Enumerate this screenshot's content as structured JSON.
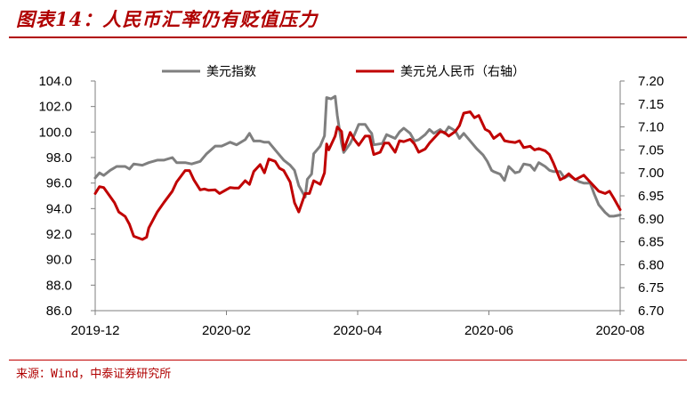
{
  "header": {
    "figure_title": "图表14：人民币汇率仍有贬值压力"
  },
  "footer": {
    "source_note": "来源：Wind，中泰证券研究所"
  },
  "chart_data": {
    "type": "line",
    "title": "",
    "grid": false,
    "legend_position": "top",
    "x_tick_labels": [
      "2019-12",
      "2020-02",
      "2020-04",
      "2020-06",
      "2020-08"
    ],
    "x_range": [
      "2019-12-02",
      "2020-08-03"
    ],
    "y_left": {
      "label": "",
      "ylim": [
        86.0,
        104.0
      ],
      "ticks": [
        "86.0",
        "88.0",
        "90.0",
        "92.0",
        "94.0",
        "96.0",
        "98.0",
        "100.0",
        "102.0",
        "104.0"
      ]
    },
    "y_right": {
      "label": "",
      "ylim": [
        6.7,
        7.2
      ],
      "ticks": [
        "6.70",
        "6.75",
        "6.80",
        "6.85",
        "6.90",
        "6.95",
        "7.00",
        "7.05",
        "7.10",
        "7.15",
        "7.20"
      ]
    },
    "series": [
      {
        "name": "美元指数",
        "axis": "left",
        "color": "#7f7f7f",
        "points": [
          [
            "2019-12-02",
            96.4
          ],
          [
            "2019-12-04",
            96.8
          ],
          [
            "2019-12-06",
            96.6
          ],
          [
            "2019-12-09",
            97.0
          ],
          [
            "2019-12-12",
            97.3
          ],
          [
            "2019-12-16",
            97.3
          ],
          [
            "2019-12-18",
            97.1
          ],
          [
            "2019-12-20",
            97.5
          ],
          [
            "2019-12-24",
            97.4
          ],
          [
            "2019-12-27",
            97.6
          ],
          [
            "2019-12-31",
            97.8
          ],
          [
            "2020-01-03",
            97.8
          ],
          [
            "2020-01-07",
            98.0
          ],
          [
            "2020-01-09",
            97.6
          ],
          [
            "2020-01-13",
            97.6
          ],
          [
            "2020-01-16",
            97.5
          ],
          [
            "2020-01-20",
            97.7
          ],
          [
            "2020-01-23",
            98.3
          ],
          [
            "2020-01-27",
            98.9
          ],
          [
            "2020-01-30",
            98.9
          ],
          [
            "2020-02-03",
            99.2
          ],
          [
            "2020-02-06",
            99.0
          ],
          [
            "2020-02-10",
            99.4
          ],
          [
            "2020-02-12",
            99.9
          ],
          [
            "2020-02-14",
            99.3
          ],
          [
            "2020-02-17",
            99.3
          ],
          [
            "2020-02-19",
            99.2
          ],
          [
            "2020-02-21",
            99.2
          ],
          [
            "2020-02-25",
            98.4
          ],
          [
            "2020-02-28",
            97.8
          ],
          [
            "2020-03-02",
            97.4
          ],
          [
            "2020-03-04",
            97.0
          ],
          [
            "2020-03-06",
            95.8
          ],
          [
            "2020-03-09",
            94.9
          ],
          [
            "2020-03-10",
            96.3
          ],
          [
            "2020-03-12",
            96.7
          ],
          [
            "2020-03-13",
            98.3
          ],
          [
            "2020-03-16",
            98.9
          ],
          [
            "2020-03-18",
            99.7
          ],
          [
            "2020-03-19",
            102.7
          ],
          [
            "2020-03-21",
            102.6
          ],
          [
            "2020-03-23",
            102.8
          ],
          [
            "2020-03-24",
            101.3
          ],
          [
            "2020-03-26",
            99.1
          ],
          [
            "2020-03-27",
            98.4
          ],
          [
            "2020-03-30",
            99.1
          ],
          [
            "2020-04-01",
            99.8
          ],
          [
            "2020-04-03",
            100.6
          ],
          [
            "2020-04-06",
            100.6
          ],
          [
            "2020-04-08",
            100.1
          ],
          [
            "2020-04-09",
            99.9
          ],
          [
            "2020-04-10",
            99.0
          ],
          [
            "2020-04-14",
            99.1
          ],
          [
            "2020-04-16",
            99.8
          ],
          [
            "2020-04-20",
            99.5
          ],
          [
            "2020-04-22",
            100.0
          ],
          [
            "2020-04-24",
            100.3
          ],
          [
            "2020-04-27",
            99.9
          ],
          [
            "2020-04-29",
            99.3
          ],
          [
            "2020-05-01",
            99.4
          ],
          [
            "2020-05-04",
            99.8
          ],
          [
            "2020-05-06",
            100.2
          ],
          [
            "2020-05-08",
            99.9
          ],
          [
            "2020-05-11",
            100.2
          ],
          [
            "2020-05-13",
            99.9
          ],
          [
            "2020-05-15",
            100.4
          ],
          [
            "2020-05-18",
            100.1
          ],
          [
            "2020-05-20",
            99.5
          ],
          [
            "2020-05-22",
            99.9
          ],
          [
            "2020-05-26",
            99.1
          ],
          [
            "2020-05-28",
            98.7
          ],
          [
            "2020-05-31",
            98.2
          ],
          [
            "2020-06-02",
            97.7
          ],
          [
            "2020-06-04",
            97.0
          ],
          [
            "2020-06-05",
            96.9
          ],
          [
            "2020-06-08",
            96.7
          ],
          [
            "2020-06-10",
            96.2
          ],
          [
            "2020-06-12",
            97.3
          ],
          [
            "2020-06-15",
            96.8
          ],
          [
            "2020-06-17",
            96.9
          ],
          [
            "2020-06-19",
            97.5
          ],
          [
            "2020-06-22",
            97.4
          ],
          [
            "2020-06-24",
            97.0
          ],
          [
            "2020-06-26",
            97.6
          ],
          [
            "2020-06-29",
            97.3
          ],
          [
            "2020-07-01",
            97.0
          ],
          [
            "2020-07-03",
            96.9
          ],
          [
            "2020-07-06",
            96.9
          ],
          [
            "2020-07-08",
            96.4
          ],
          [
            "2020-07-10",
            96.6
          ],
          [
            "2020-07-13",
            96.3
          ],
          [
            "2020-07-15",
            96.1
          ],
          [
            "2020-07-17",
            96.0
          ],
          [
            "2020-07-20",
            96.0
          ],
          [
            "2020-07-22",
            95.1
          ],
          [
            "2020-07-24",
            94.3
          ],
          [
            "2020-07-27",
            93.7
          ],
          [
            "2020-07-29",
            93.4
          ],
          [
            "2020-07-31",
            93.4
          ],
          [
            "2020-08-03",
            93.5
          ]
        ]
      },
      {
        "name": "美元兑人民币（右轴）",
        "axis": "right",
        "color": "#c00000",
        "points": [
          [
            "2019-12-02",
            6.955
          ],
          [
            "2019-12-04",
            6.97
          ],
          [
            "2019-12-06",
            6.968
          ],
          [
            "2019-12-09",
            6.948
          ],
          [
            "2019-12-11",
            6.935
          ],
          [
            "2019-12-13",
            6.915
          ],
          [
            "2019-12-16",
            6.905
          ],
          [
            "2019-12-18",
            6.888
          ],
          [
            "2019-12-20",
            6.862
          ],
          [
            "2019-12-24",
            6.855
          ],
          [
            "2019-12-26",
            6.86
          ],
          [
            "2019-12-27",
            6.88
          ],
          [
            "2019-12-31",
            6.915
          ],
          [
            "2020-01-03",
            6.935
          ],
          [
            "2020-01-07",
            6.96
          ],
          [
            "2020-01-09",
            6.98
          ],
          [
            "2020-01-13",
            7.005
          ],
          [
            "2020-01-15",
            7.005
          ],
          [
            "2020-01-17",
            6.985
          ],
          [
            "2020-01-20",
            6.963
          ],
          [
            "2020-01-22",
            6.965
          ],
          [
            "2020-01-24",
            6.962
          ],
          [
            "2020-01-27",
            6.963
          ],
          [
            "2020-01-29",
            6.955
          ],
          [
            "2020-02-03",
            6.968
          ],
          [
            "2020-02-05",
            6.967
          ],
          [
            "2020-02-07",
            6.967
          ],
          [
            "2020-02-10",
            6.983
          ],
          [
            "2020-02-12",
            6.975
          ],
          [
            "2020-02-14",
            7.003
          ],
          [
            "2020-02-17",
            7.018
          ],
          [
            "2020-02-19",
            7.0
          ],
          [
            "2020-02-21",
            7.03
          ],
          [
            "2020-02-24",
            7.025
          ],
          [
            "2020-02-26",
            7.01
          ],
          [
            "2020-02-28",
            7.005
          ],
          [
            "2020-03-02",
            6.98
          ],
          [
            "2020-03-04",
            6.935
          ],
          [
            "2020-03-06",
            6.915
          ],
          [
            "2020-03-09",
            6.955
          ],
          [
            "2020-03-11",
            6.955
          ],
          [
            "2020-03-13",
            6.983
          ],
          [
            "2020-03-16",
            6.975
          ],
          [
            "2020-03-18",
            7.0
          ],
          [
            "2020-03-19",
            7.063
          ],
          [
            "2020-03-20",
            7.05
          ],
          [
            "2020-03-23",
            7.08
          ],
          [
            "2020-03-24",
            7.1
          ],
          [
            "2020-03-26",
            7.09
          ],
          [
            "2020-03-27",
            7.05
          ],
          [
            "2020-03-30",
            7.088
          ],
          [
            "2020-04-01",
            7.072
          ],
          [
            "2020-04-03",
            7.06
          ],
          [
            "2020-04-06",
            7.08
          ],
          [
            "2020-04-08",
            7.08
          ],
          [
            "2020-04-10",
            7.04
          ],
          [
            "2020-04-13",
            7.045
          ],
          [
            "2020-04-15",
            7.065
          ],
          [
            "2020-04-17",
            7.065
          ],
          [
            "2020-04-20",
            7.045
          ],
          [
            "2020-04-22",
            7.07
          ],
          [
            "2020-04-24",
            7.068
          ],
          [
            "2020-04-27",
            7.073
          ],
          [
            "2020-04-29",
            7.063
          ],
          [
            "2020-05-01",
            7.045
          ],
          [
            "2020-05-04",
            7.052
          ],
          [
            "2020-05-06",
            7.065
          ],
          [
            "2020-05-08",
            7.075
          ],
          [
            "2020-05-11",
            7.09
          ],
          [
            "2020-05-13",
            7.088
          ],
          [
            "2020-05-15",
            7.08
          ],
          [
            "2020-05-18",
            7.09
          ],
          [
            "2020-05-20",
            7.103
          ],
          [
            "2020-05-22",
            7.13
          ],
          [
            "2020-05-25",
            7.133
          ],
          [
            "2020-05-27",
            7.12
          ],
          [
            "2020-05-29",
            7.125
          ],
          [
            "2020-06-01",
            7.095
          ],
          [
            "2020-06-03",
            7.09
          ],
          [
            "2020-06-05",
            7.075
          ],
          [
            "2020-06-08",
            7.085
          ],
          [
            "2020-06-10",
            7.07
          ],
          [
            "2020-06-12",
            7.068
          ],
          [
            "2020-06-15",
            7.066
          ],
          [
            "2020-06-17",
            7.07
          ],
          [
            "2020-06-19",
            7.055
          ],
          [
            "2020-06-22",
            7.058
          ],
          [
            "2020-06-24",
            7.05
          ],
          [
            "2020-06-26",
            7.053
          ],
          [
            "2020-06-29",
            7.048
          ],
          [
            "2020-07-01",
            7.04
          ],
          [
            "2020-07-03",
            7.02
          ],
          [
            "2020-07-06",
            6.985
          ],
          [
            "2020-07-08",
            6.99
          ],
          [
            "2020-07-10",
            6.998
          ],
          [
            "2020-07-13",
            6.985
          ],
          [
            "2020-07-15",
            6.99
          ],
          [
            "2020-07-17",
            6.995
          ],
          [
            "2020-07-20",
            6.98
          ],
          [
            "2020-07-22",
            6.97
          ],
          [
            "2020-07-24",
            6.96
          ],
          [
            "2020-07-27",
            6.955
          ],
          [
            "2020-07-29",
            6.96
          ],
          [
            "2020-07-31",
            6.945
          ],
          [
            "2020-08-03",
            6.92
          ]
        ]
      }
    ]
  }
}
